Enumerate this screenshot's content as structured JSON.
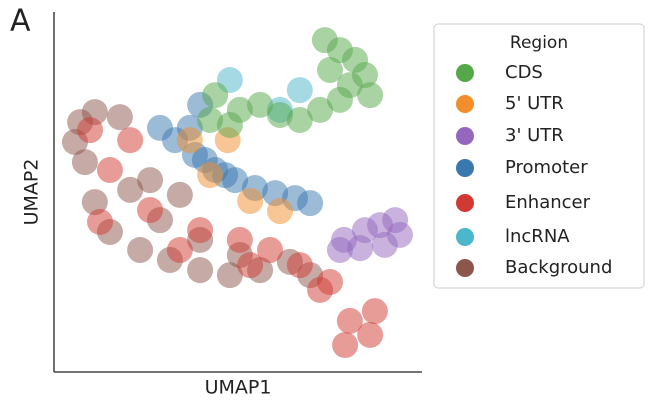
{
  "chart_data": {
    "type": "scatter",
    "panel_label": "A",
    "x_label": "UMAP1",
    "y_label": "UMAP2",
    "xlim": [
      0,
      100
    ],
    "ylim": [
      0,
      100
    ],
    "legend_title": "Region",
    "legend": "outside-right",
    "series": [
      {
        "name": "CDS",
        "color": "#55a84a",
        "x": [
          77.7,
          81.8,
          75,
          80.4,
          84.5,
          77.7,
          72.3,
          66.8,
          61.4,
          56,
          50.5,
          43.8,
          42.4,
          47.8,
          73.6,
          85.9
        ],
        "y": [
          89.4,
          86.7,
          83.9,
          79.7,
          82.5,
          75.6,
          72.8,
          70,
          71.4,
          74.2,
          72.8,
          76.9,
          70,
          68.6,
          92.2,
          76.9
        ]
      },
      {
        "name": "5' UTR",
        "color": "#f28e2b",
        "x": [
          42.4,
          53.3,
          61.4,
          36.9,
          47.2
        ],
        "y": [
          54.7,
          47.5,
          44.7,
          64.4,
          64.4
        ]
      },
      {
        "name": "3' UTR",
        "color": "#9467bd",
        "x": [
          78.8,
          84.5,
          88.6,
          92.7,
          94,
          89.9,
          83.2,
          77.7
        ],
        "y": [
          36.7,
          39.4,
          40.8,
          42.2,
          38.1,
          35.3,
          34.4,
          33.9
        ]
      },
      {
        "name": "Promoter",
        "color": "#3a78b0",
        "x": [
          28.8,
          32.9,
          38.3,
          43.8,
          49.2,
          54.6,
          60.1,
          65.5,
          69.6,
          46.5,
          41,
          39.7,
          36.9
        ],
        "y": [
          67.8,
          64.4,
          60.3,
          56.1,
          53.3,
          51.1,
          49.7,
          48.3,
          46.9,
          54.7,
          58.9,
          74.2,
          67.8
        ]
      },
      {
        "name": "Enhancer",
        "color": "#d03a32",
        "x": [
          80.4,
          85.9,
          79.1,
          87.2,
          72.3,
          66.8,
          58.7,
          50.5,
          39.7,
          26.1,
          15.2,
          9.8,
          20.7,
          12.5,
          34.2,
          53.3,
          75
        ],
        "y": [
          14.2,
          10.3,
          7.5,
          16.9,
          22.8,
          29.7,
          33.9,
          36.7,
          39.4,
          45,
          56.1,
          67.2,
          64.4,
          41.7,
          33.9,
          29.7,
          25
        ]
      },
      {
        "name": "lncRNA",
        "color": "#4bb6cc",
        "x": [
          66.8,
          61.4,
          47.8
        ],
        "y": [
          78.3,
          72.8,
          81.1
        ]
      },
      {
        "name": "Background",
        "color": "#8c564b",
        "x": [
          7.1,
          11.1,
          17.9,
          8.4,
          11.1,
          15.2,
          23.4,
          31.5,
          39.7,
          47.8,
          56,
          64.1,
          69.6,
          20.7,
          28.8,
          39.7,
          50.5,
          5.7,
          26.1,
          34.2
        ],
        "y": [
          69.4,
          72.2,
          70.8,
          58.3,
          47.2,
          38.9,
          33.9,
          31.1,
          28.3,
          26.9,
          28.3,
          30.6,
          26.9,
          50.6,
          42.2,
          36.7,
          32.5,
          63.9,
          53.3,
          49.2
        ]
      }
    ]
  }
}
